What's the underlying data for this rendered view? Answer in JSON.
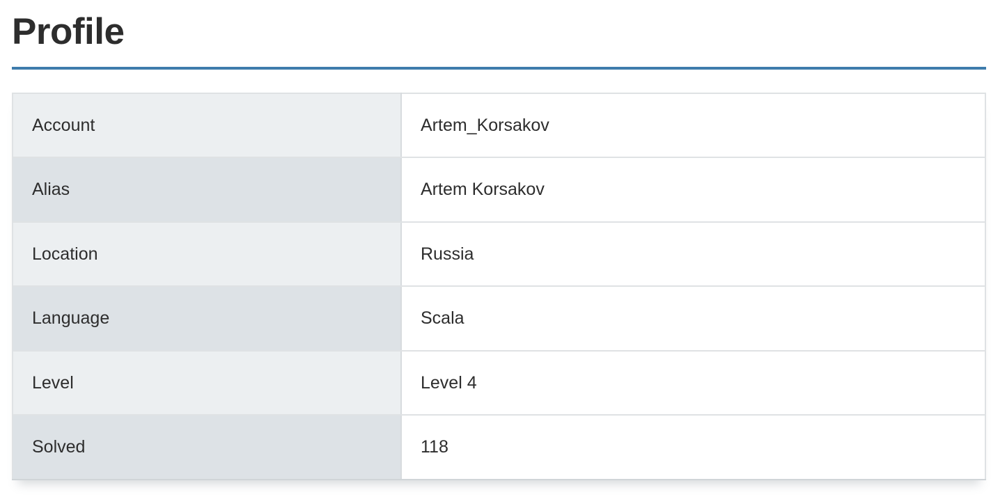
{
  "page": {
    "title": "Profile"
  },
  "colors": {
    "accent_rule": "#3e7cac",
    "heading_text": "#2d2d2d",
    "label_cell_odd_bg": "#eceff1",
    "label_cell_even_bg": "#dde2e6",
    "value_cell_bg": "#ffffff",
    "cell_border": "#dfe2e4"
  },
  "table": {
    "rows": [
      {
        "label": "Account",
        "value": "Artem_Korsakov"
      },
      {
        "label": "Alias",
        "value": "Artem Korsakov"
      },
      {
        "label": "Location",
        "value": "Russia"
      },
      {
        "label": "Language",
        "value": "Scala"
      },
      {
        "label": "Level",
        "value": "Level 4"
      },
      {
        "label": "Solved",
        "value": "118"
      }
    ]
  }
}
